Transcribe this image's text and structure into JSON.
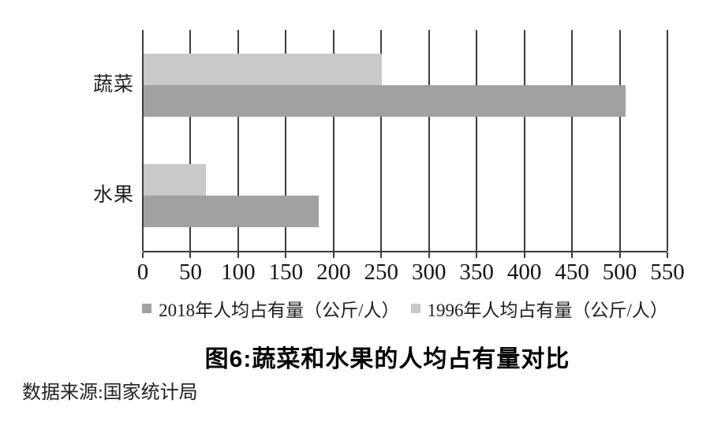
{
  "chart_data": {
    "type": "bar",
    "orientation": "horizontal",
    "title": "图6:蔬菜和水果的人均占有量对比",
    "source_note": "数据来源:国家统计局",
    "categories": [
      "蔬菜",
      "水果"
    ],
    "series": [
      {
        "name": "2018年人均占有量（公斤/人）",
        "color": "#a1a1a2",
        "values": [
          505,
          184
        ]
      },
      {
        "name": "1996年人均占有量（公斤/人）",
        "color": "#c9c9cb",
        "values": [
          250,
          65
        ]
      }
    ],
    "xlim": [
      0,
      550
    ],
    "xticks": [
      0,
      50,
      100,
      150,
      200,
      250,
      300,
      350,
      400,
      450,
      500,
      550
    ],
    "grid": "vertical-only",
    "legend_position": "bottom",
    "axis_color": "#403c39",
    "background_color": "#ffffff"
  }
}
